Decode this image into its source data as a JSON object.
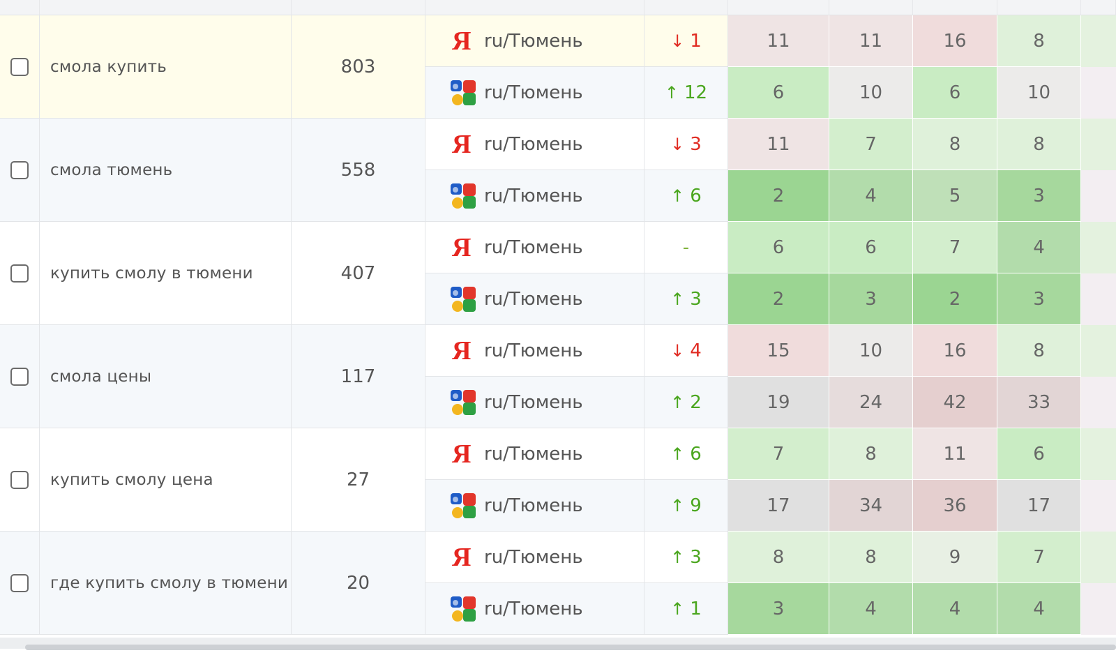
{
  "region": "ru/Тюмень",
  "engines": [
    "yandex",
    "google"
  ],
  "rows": [
    {
      "keyword": "смола купить",
      "volume": "803",
      "yandex": {
        "dir": "down",
        "delta": "1",
        "positions": [
          "11",
          "11",
          "16",
          "8"
        ]
      },
      "google": {
        "dir": "up",
        "delta": "12",
        "positions": [
          "6",
          "10",
          "6",
          "10"
        ]
      }
    },
    {
      "keyword": "смола тюмень",
      "volume": "558",
      "yandex": {
        "dir": "down",
        "delta": "3",
        "positions": [
          "11",
          "7",
          "8",
          "8"
        ]
      },
      "google": {
        "dir": "up",
        "delta": "6",
        "positions": [
          "2",
          "4",
          "5",
          "3"
        ]
      }
    },
    {
      "keyword": "купить смолу в тюмени",
      "volume": "407",
      "yandex": {
        "dir": "none",
        "delta": "-",
        "positions": [
          "6",
          "6",
          "7",
          "4"
        ]
      },
      "google": {
        "dir": "up",
        "delta": "3",
        "positions": [
          "2",
          "3",
          "2",
          "3"
        ]
      }
    },
    {
      "keyword": "смола цены",
      "volume": "117",
      "yandex": {
        "dir": "down",
        "delta": "4",
        "positions": [
          "15",
          "10",
          "16",
          "8"
        ]
      },
      "google": {
        "dir": "up",
        "delta": "2",
        "positions": [
          "19",
          "24",
          "42",
          "33"
        ]
      }
    },
    {
      "keyword": "купить смолу цена",
      "volume": "27",
      "yandex": {
        "dir": "up",
        "delta": "6",
        "positions": [
          "7",
          "8",
          "11",
          "6"
        ]
      },
      "google": {
        "dir": "up",
        "delta": "9",
        "positions": [
          "17",
          "34",
          "36",
          "17"
        ]
      }
    },
    {
      "keyword": "где купить смолу в тюмени",
      "volume": "20",
      "yandex": {
        "dir": "up",
        "delta": "3",
        "positions": [
          "8",
          "8",
          "9",
          "7"
        ]
      },
      "google": {
        "dir": "up",
        "delta": "1",
        "positions": [
          "3",
          "4",
          "4",
          "4"
        ]
      }
    }
  ],
  "colors": {
    "highlight_row": "#fffdeb",
    "alt_row": "#f5f8fb",
    "up": "#4aa61e",
    "down": "#e02b22"
  }
}
